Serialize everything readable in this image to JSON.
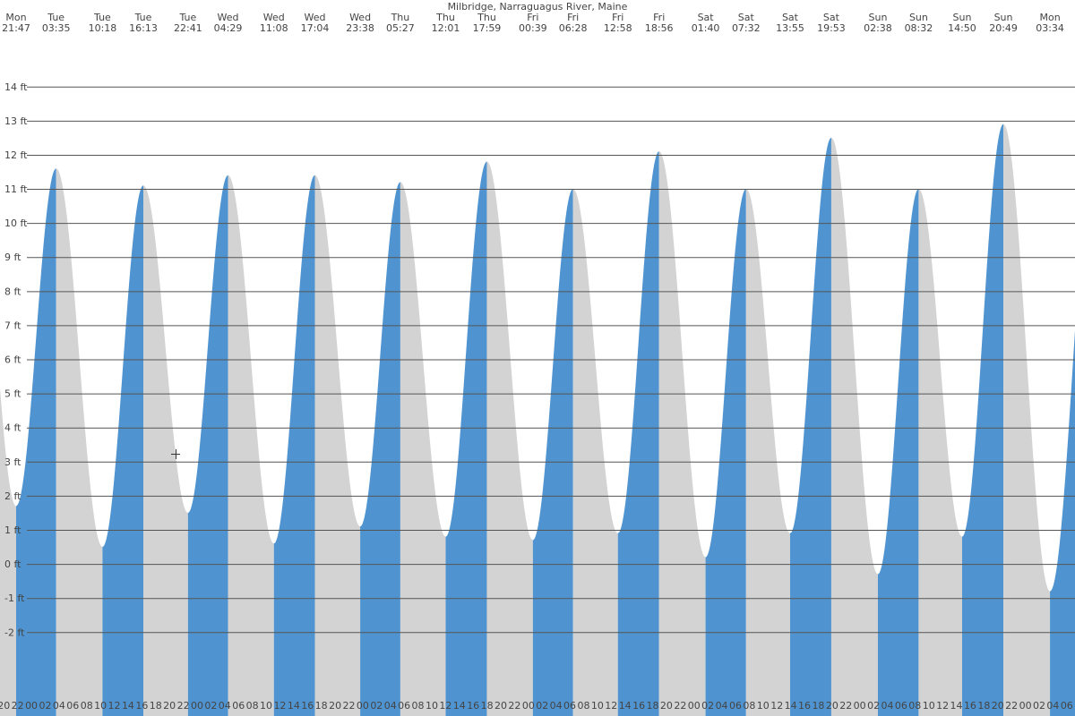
{
  "chart_data": {
    "type": "tide",
    "title": "Milbridge, Narraguagus River, Maine",
    "days": [
      "Mon",
      "Tue",
      "Tue",
      "Tue",
      "Tue",
      "Wed",
      "Wed",
      "Wed",
      "Wed",
      "Thu",
      "Thu",
      "Thu",
      "Fri",
      "Fri",
      "Fri",
      "Fri",
      "Sat",
      "Sat",
      "Sat",
      "Sat",
      "Sun",
      "Sun",
      "Sun",
      "Sun",
      "Mon"
    ],
    "times": [
      "21:47",
      "03:35",
      "10:18",
      "16:13",
      "22:41",
      "04:29",
      "11:08",
      "17:04",
      "23:38",
      "05:27",
      "12:01",
      "17:59",
      "00:39",
      "06:28",
      "12:58",
      "18:56",
      "01:40",
      "07:32",
      "13:55",
      "19:53",
      "02:38",
      "08:32",
      "14:50",
      "20:49",
      "03:34"
    ],
    "values": [
      1.7,
      11.6,
      0.5,
      11.1,
      1.5,
      11.4,
      0.6,
      11.4,
      1.1,
      11.2,
      0.8,
      11.8,
      0.7,
      11.0,
      0.9,
      12.1,
      0.2,
      11.0,
      0.9,
      12.5,
      -0.3,
      11.0,
      0.8,
      12.9,
      -0.8
    ],
    "rising_color": "#4f94d0",
    "falling_color": "#d3d3d3",
    "ylim": [
      -4.46,
      16.54
    ],
    "yticks": [
      {
        "value": -2,
        "label": "-2 ft"
      },
      {
        "value": -1,
        "label": "-1 ft"
      },
      {
        "value": 0,
        "label": "0 ft"
      },
      {
        "value": 1,
        "label": "1 ft"
      },
      {
        "value": 2,
        "label": "2 ft"
      },
      {
        "value": 3,
        "label": "3 ft"
      },
      {
        "value": 4,
        "label": "4 ft"
      },
      {
        "value": 5,
        "label": "5 ft"
      },
      {
        "value": 6,
        "label": "6 ft"
      },
      {
        "value": 7,
        "label": "7 ft"
      },
      {
        "value": 8,
        "label": "8 ft"
      },
      {
        "value": 9,
        "label": "9 ft"
      },
      {
        "value": 10,
        "label": "10 ft"
      },
      {
        "value": 11,
        "label": "11 ft"
      },
      {
        "value": 12,
        "label": "12 ft"
      },
      {
        "value": 13,
        "label": "13 ft"
      },
      {
        "value": 14,
        "label": "14 ft"
      }
    ],
    "grid": true,
    "hour_labels": [
      "20",
      "22",
      "00",
      "02",
      "04",
      "06",
      "08",
      "10",
      "12",
      "14",
      "16",
      "18",
      "20",
      "22",
      "00",
      "02",
      "04",
      "06",
      "08",
      "10",
      "12",
      "14",
      "16",
      "18",
      "20",
      "22",
      "00",
      "02",
      "04",
      "06",
      "08",
      "10",
      "12",
      "14",
      "16",
      "18",
      "20",
      "22",
      "00",
      "02",
      "04",
      "06",
      "08",
      "10",
      "12",
      "14",
      "16",
      "18",
      "20",
      "22",
      "00",
      "02",
      "04",
      "06",
      "08",
      "10",
      "12",
      "14",
      "16",
      "18",
      "20",
      "22",
      "00",
      "02",
      "04",
      "06",
      "08",
      "10",
      "12",
      "14",
      "16",
      "18",
      "20",
      "22",
      "00",
      "02",
      "04",
      "06"
    ]
  }
}
